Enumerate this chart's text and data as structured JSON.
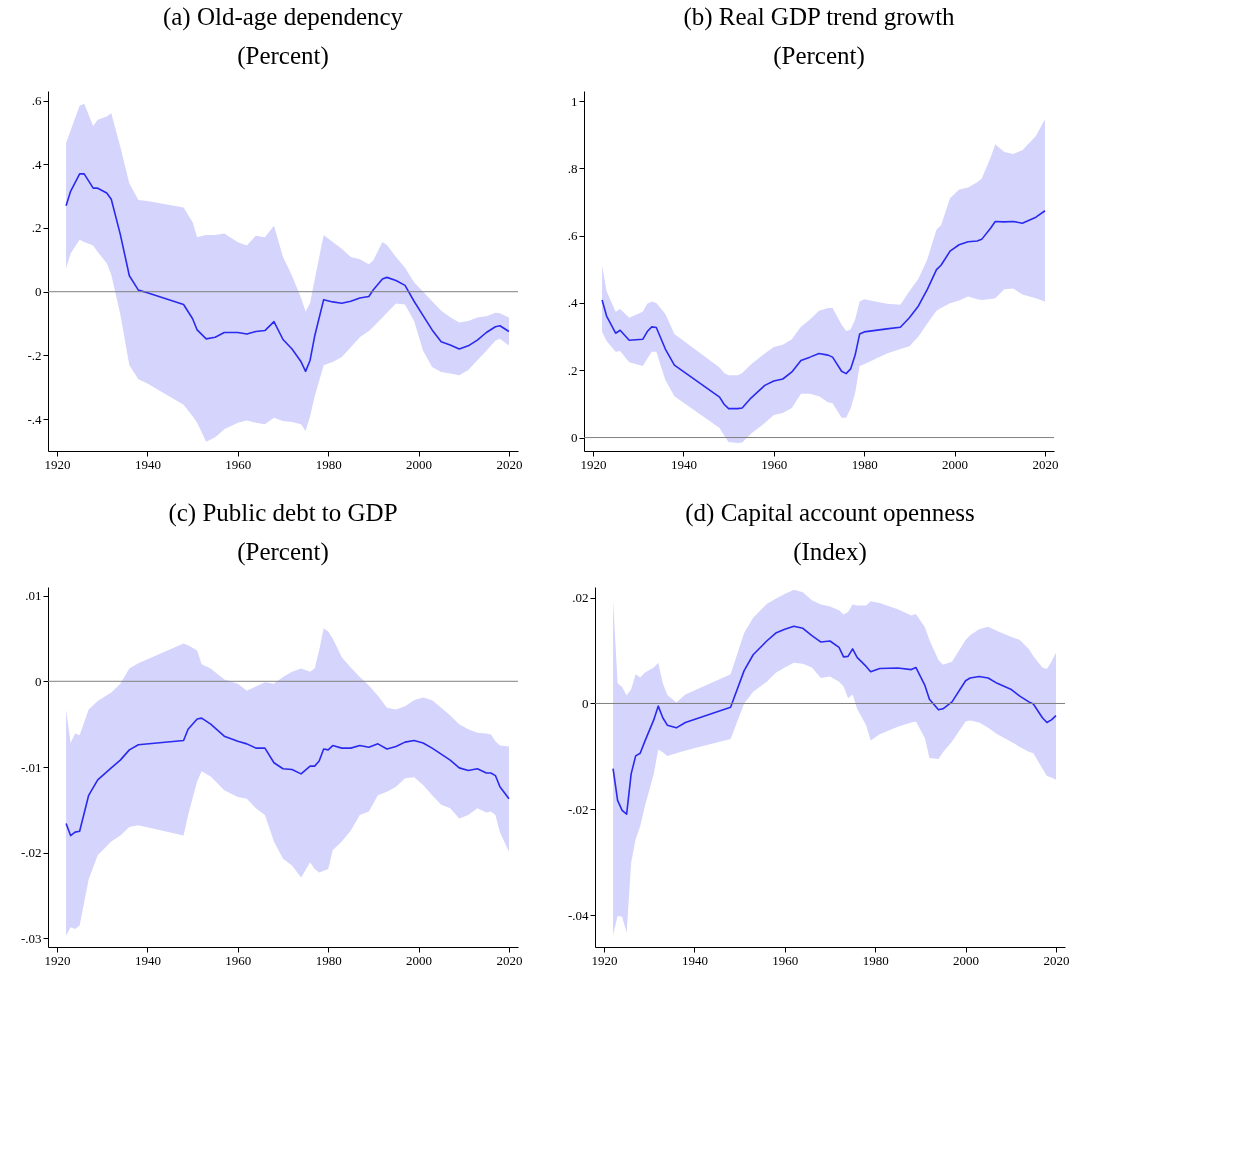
{
  "chart_data": [
    {
      "type": "line",
      "title": "(a) Old-age dependency",
      "subtitle": "(Percent)",
      "grid": false,
      "x": [
        1922,
        1923,
        1925,
        1926,
        1928,
        1929,
        1931,
        1932,
        1934,
        1936,
        1938,
        1940,
        1948,
        1950,
        1951,
        1953,
        1955,
        1957,
        1960,
        1962,
        1964,
        1966,
        1968,
        1970,
        1972,
        1974,
        1975,
        1976,
        1977,
        1979,
        1981,
        1983,
        1985,
        1987,
        1989,
        1990,
        1992,
        1993,
        1995,
        1997,
        1999,
        2001,
        2003,
        2005,
        2007,
        2009,
        2011,
        2013,
        2015,
        2017,
        2018,
        2020
      ],
      "series": [
        {
          "color": "#2a2aee",
          "values": [
            0.27,
            0.315,
            0.37,
            0.37,
            0.325,
            0.325,
            0.31,
            0.29,
            0.18,
            0.05,
            0.005,
            -0.003,
            -0.04,
            -0.085,
            -0.12,
            -0.148,
            -0.143,
            -0.128,
            -0.128,
            -0.133,
            -0.125,
            -0.122,
            -0.094,
            -0.15,
            -0.18,
            -0.22,
            -0.25,
            -0.215,
            -0.14,
            -0.025,
            -0.032,
            -0.036,
            -0.03,
            -0.02,
            -0.015,
            0.006,
            0.04,
            0.045,
            0.035,
            0.02,
            -0.03,
            -0.075,
            -0.12,
            -0.157,
            -0.167,
            -0.18,
            -0.17,
            -0.152,
            -0.128,
            -0.11,
            -0.107,
            -0.125
          ],
          "lower": [
            0.073,
            0.12,
            0.163,
            0.156,
            0.145,
            0.125,
            0.089,
            0.053,
            -0.071,
            -0.231,
            -0.275,
            -0.288,
            -0.355,
            -0.391,
            -0.411,
            -0.471,
            -0.457,
            -0.432,
            -0.411,
            -0.404,
            -0.411,
            -0.416,
            -0.396,
            -0.406,
            -0.409,
            -0.416,
            -0.437,
            -0.391,
            -0.329,
            -0.231,
            -0.221,
            -0.205,
            -0.174,
            -0.143,
            -0.123,
            -0.11,
            -0.081,
            -0.066,
            -0.037,
            -0.04,
            -0.092,
            -0.185,
            -0.236,
            -0.252,
            -0.257,
            -0.262,
            -0.246,
            -0.215,
            -0.185,
            -0.154,
            -0.148,
            -0.169
          ],
          "upper": [
            0.467,
            0.506,
            0.584,
            0.59,
            0.52,
            0.54,
            0.55,
            0.56,
            0.455,
            0.34,
            0.288,
            0.285,
            0.264,
            0.218,
            0.171,
            0.178,
            0.178,
            0.183,
            0.155,
            0.145,
            0.176,
            0.171,
            0.207,
            0.109,
            0.05,
            -0.02,
            -0.063,
            -0.035,
            0.037,
            0.178,
            0.156,
            0.135,
            0.109,
            0.102,
            0.086,
            0.099,
            0.156,
            0.147,
            0.109,
            0.075,
            0.03,
            0.0,
            -0.03,
            -0.06,
            -0.08,
            -0.097,
            -0.092,
            -0.081,
            -0.077,
            -0.066,
            -0.068,
            -0.081
          ]
        }
      ],
      "xlim": [
        1918,
        2022
      ],
      "xticks": [
        1920,
        1940,
        1960,
        1980,
        2000,
        2020
      ],
      "ylim": [
        -0.5,
        0.63
      ],
      "yticks": [
        {
          "value": -0.4,
          "label": "-.4"
        },
        {
          "value": -0.2,
          "label": "-.2"
        },
        {
          "value": 0,
          "label": "0"
        },
        {
          "value": 0.2,
          "label": ".2"
        },
        {
          "value": 0.4,
          "label": ".4"
        },
        {
          "value": 0.6,
          "label": ".6"
        }
      ],
      "ref_lines": [
        {
          "axis": "y",
          "value": 0,
          "color": "#808080"
        }
      ]
    },
    {
      "type": "line",
      "title": "(b) Real GDP trend growth",
      "subtitle": "(Percent)",
      "grid": false,
      "x": [
        1922,
        1923,
        1925,
        1926,
        1928,
        1931,
        1932,
        1933,
        1934,
        1936,
        1938,
        1948,
        1949,
        1950,
        1952,
        1953,
        1955,
        1958,
        1960,
        1962,
        1964,
        1966,
        1968,
        1970,
        1972,
        1973,
        1975,
        1976,
        1977,
        1978,
        1979,
        1980,
        1985,
        1988,
        1990,
        1992,
        1994,
        1996,
        1997,
        1999,
        2001,
        2003,
        2005,
        2006,
        2008,
        2009,
        2011,
        2013,
        2015,
        2018,
        2020
      ],
      "series": [
        {
          "color": "#2a2aee",
          "values": [
            0.409,
            0.361,
            0.31,
            0.319,
            0.289,
            0.292,
            0.315,
            0.329,
            0.327,
            0.263,
            0.215,
            0.12,
            0.099,
            0.086,
            0.086,
            0.088,
            0.118,
            0.155,
            0.168,
            0.174,
            0.195,
            0.229,
            0.239,
            0.25,
            0.245,
            0.239,
            0.197,
            0.19,
            0.204,
            0.245,
            0.308,
            0.314,
            0.323,
            0.328,
            0.356,
            0.391,
            0.441,
            0.499,
            0.512,
            0.554,
            0.573,
            0.582,
            0.584,
            0.589,
            0.623,
            0.642,
            0.641,
            0.642,
            0.637,
            0.655,
            0.674
          ],
          "lower": [
            0.314,
            0.287,
            0.255,
            0.257,
            0.224,
            0.213,
            0.234,
            0.255,
            0.255,
            0.171,
            0.123,
            0.028,
            0.006,
            -0.013,
            -0.016,
            -0.015,
            0.012,
            0.043,
            0.067,
            0.073,
            0.088,
            0.13,
            0.13,
            0.123,
            0.105,
            0.102,
            0.059,
            0.059,
            0.086,
            0.133,
            0.213,
            0.218,
            0.25,
            0.263,
            0.271,
            0.3,
            0.34,
            0.377,
            0.385,
            0.399,
            0.407,
            0.419,
            0.411,
            0.409,
            0.412,
            0.414,
            0.441,
            0.443,
            0.425,
            0.414,
            0.404
          ],
          "upper": [
            0.51,
            0.435,
            0.374,
            0.382,
            0.356,
            0.374,
            0.398,
            0.404,
            0.4,
            0.367,
            0.308,
            0.208,
            0.192,
            0.185,
            0.185,
            0.192,
            0.218,
            0.25,
            0.269,
            0.276,
            0.292,
            0.329,
            0.351,
            0.377,
            0.385,
            0.385,
            0.335,
            0.317,
            0.321,
            0.351,
            0.404,
            0.411,
            0.398,
            0.395,
            0.435,
            0.472,
            0.531,
            0.618,
            0.631,
            0.711,
            0.737,
            0.743,
            0.759,
            0.769,
            0.833,
            0.872,
            0.849,
            0.843,
            0.854,
            0.896,
            0.946
          ]
        }
      ],
      "xlim": [
        1918,
        2022
      ],
      "xticks": [
        1920,
        1940,
        1960,
        1980,
        2000,
        2020
      ],
      "ylim": [
        -0.04,
        1.03
      ],
      "yticks": [
        {
          "value": 0,
          "label": "0"
        },
        {
          "value": 0.2,
          "label": ".2"
        },
        {
          "value": 0.4,
          "label": ".4"
        },
        {
          "value": 0.6,
          "label": ".6"
        },
        {
          "value": 0.8,
          "label": ".8"
        },
        {
          "value": 1,
          "label": "1"
        }
      ],
      "ref_lines": [
        {
          "axis": "y",
          "value": 0,
          "color": "#808080"
        }
      ]
    },
    {
      "type": "line",
      "title": "(c) Public debt to GDP",
      "subtitle": "(Percent)",
      "grid": false,
      "x": [
        1922,
        1923,
        1924,
        1925,
        1927,
        1929,
        1932,
        1934,
        1936,
        1938,
        1948,
        1949,
        1951,
        1952,
        1954,
        1957,
        1960,
        1962,
        1964,
        1966,
        1968,
        1970,
        1972,
        1974,
        1976,
        1977,
        1978,
        1979,
        1980,
        1981,
        1983,
        1985,
        1987,
        1989,
        1991,
        1993,
        1995,
        1997,
        1999,
        2001,
        2003,
        2005,
        2007,
        2009,
        2011,
        2013,
        2015,
        2016,
        2017,
        2018,
        2020
      ],
      "series": [
        {
          "color": "#2a2aee",
          "values": [
            -0.0166,
            -0.018,
            -0.0176,
            -0.0175,
            -0.0133,
            -0.0115,
            -0.0101,
            -0.0092,
            -0.008,
            -0.0074,
            -0.0069,
            -0.0056,
            -0.0044,
            -0.0043,
            -0.005,
            -0.0064,
            -0.007,
            -0.0073,
            -0.0078,
            -0.0078,
            -0.0095,
            -0.0102,
            -0.0103,
            -0.0108,
            -0.0099,
            -0.0099,
            -0.0093,
            -0.0079,
            -0.008,
            -0.0075,
            -0.0078,
            -0.0078,
            -0.0075,
            -0.0077,
            -0.0073,
            -0.0079,
            -0.0076,
            -0.0071,
            -0.0069,
            -0.0072,
            -0.0078,
            -0.0085,
            -0.0092,
            -0.0101,
            -0.0104,
            -0.0102,
            -0.0107,
            -0.0107,
            -0.011,
            -0.0123,
            -0.0137
          ],
          "lower": [
            -0.0297,
            -0.0287,
            -0.0289,
            -0.0285,
            -0.0231,
            -0.0203,
            -0.0187,
            -0.018,
            -0.017,
            -0.0168,
            -0.018,
            -0.0156,
            -0.0117,
            -0.0105,
            -0.0111,
            -0.0127,
            -0.0135,
            -0.0137,
            -0.0148,
            -0.0156,
            -0.0187,
            -0.0207,
            -0.0215,
            -0.0229,
            -0.0211,
            -0.0219,
            -0.0223,
            -0.0221,
            -0.0219,
            -0.0197,
            -0.0187,
            -0.0174,
            -0.0156,
            -0.0152,
            -0.0133,
            -0.0129,
            -0.0123,
            -0.0113,
            -0.0112,
            -0.0121,
            -0.0133,
            -0.0144,
            -0.0148,
            -0.016,
            -0.0156,
            -0.0148,
            -0.0153,
            -0.0152,
            -0.0156,
            -0.0176,
            -0.0199
          ],
          "upper": [
            -0.0033,
            -0.0072,
            -0.0061,
            -0.0063,
            -0.0033,
            -0.0023,
            -0.0013,
            -0.0003,
            0.0015,
            0.0021,
            0.0044,
            0.0042,
            0.0036,
            0.002,
            0.0015,
            0.0002,
            -0.0003,
            -0.0011,
            -0.0006,
            -0.0001,
            -0.0003,
            0.0005,
            0.0011,
            0.0015,
            0.0011,
            0.0015,
            0.0036,
            0.0062,
            0.0058,
            0.005,
            0.0028,
            0.0016,
            0.0005,
            -0.0005,
            -0.0017,
            -0.0031,
            -0.0033,
            -0.0029,
            -0.0022,
            -0.0019,
            -0.0022,
            -0.0031,
            -0.004,
            -0.005,
            -0.0056,
            -0.006,
            -0.0061,
            -0.0062,
            -0.007,
            -0.0075,
            -0.0076
          ]
        }
      ],
      "xlim": [
        1918,
        2022
      ],
      "xticks": [
        1920,
        1940,
        1960,
        1980,
        2000,
        2020
      ],
      "ylim": [
        -0.031,
        0.011
      ],
      "yticks": [
        {
          "value": -0.03,
          "label": "-.03"
        },
        {
          "value": -0.02,
          "label": "-.02"
        },
        {
          "value": -0.01,
          "label": "-.01"
        },
        {
          "value": 0,
          "label": "0"
        },
        {
          "value": 0.01,
          "label": ".01"
        }
      ],
      "ref_lines": [
        {
          "axis": "y",
          "value": 0,
          "color": "#808080"
        }
      ]
    },
    {
      "type": "line",
      "title": "(d) Capital account openness",
      "subtitle": "(Index)",
      "grid": false,
      "x": [
        1922,
        1923,
        1924,
        1925,
        1926,
        1927,
        1928,
        1929,
        1931,
        1932,
        1933,
        1934,
        1936,
        1938,
        1948,
        1951,
        1953,
        1956,
        1958,
        1960,
        1962,
        1964,
        1966,
        1968,
        1970,
        1972,
        1973,
        1974,
        1975,
        1976,
        1978,
        1979,
        1981,
        1985,
        1988,
        1989,
        1991,
        1992,
        1994,
        1995,
        1997,
        2000,
        2001,
        2003,
        2005,
        2007,
        2010,
        2012,
        2014,
        2015,
        2017,
        2018,
        2019,
        2020
      ],
      "series": [
        {
          "color": "#2a2aee",
          "values": [
            -0.0123,
            -0.0183,
            -0.0202,
            -0.0209,
            -0.0133,
            -0.0099,
            -0.0094,
            -0.0072,
            -0.0031,
            -0.0005,
            -0.0027,
            -0.0041,
            -0.0046,
            -0.0036,
            -0.0007,
            0.0062,
            0.0092,
            0.0118,
            0.0133,
            0.014,
            0.0146,
            0.0142,
            0.0128,
            0.0116,
            0.0118,
            0.0106,
            0.0088,
            0.0089,
            0.0103,
            0.0087,
            0.007,
            0.006,
            0.0066,
            0.0067,
            0.0064,
            0.0068,
            0.0034,
            0.0008,
            -0.0012,
            -0.001,
            0.0003,
            0.0043,
            0.0048,
            0.0051,
            0.0048,
            0.0038,
            0.0027,
            0.0014,
            0.0003,
            -0.0001,
            -0.0027,
            -0.0036,
            -0.0031,
            -0.0023
          ],
          "lower": [
            -0.0438,
            -0.0401,
            -0.0403,
            -0.0433,
            -0.0301,
            -0.0256,
            -0.0232,
            -0.0195,
            -0.0133,
            -0.0087,
            -0.0092,
            -0.0099,
            -0.0094,
            -0.0089,
            -0.0067,
            0.0,
            0.0022,
            0.0041,
            0.0058,
            0.0068,
            0.0077,
            0.0075,
            0.0068,
            0.0048,
            0.0051,
            0.0041,
            0.0032,
            0.001,
            0.0017,
            -0.001,
            -0.0041,
            -0.007,
            -0.0058,
            -0.0044,
            -0.0036,
            -0.0034,
            -0.0065,
            -0.0103,
            -0.0105,
            -0.0092,
            -0.0072,
            -0.0034,
            -0.0032,
            -0.0036,
            -0.0046,
            -0.0058,
            -0.0072,
            -0.0082,
            -0.0091,
            -0.0094,
            -0.0123,
            -0.0137,
            -0.014,
            -0.0144
          ],
          "upper": [
            0.0195,
            0.0038,
            0.0031,
            0.0015,
            0.0027,
            0.0055,
            0.0049,
            0.0058,
            0.0068,
            0.0077,
            0.0038,
            0.0016,
            0.0002,
            0.0017,
            0.0055,
            0.0133,
            0.0162,
            0.0188,
            0.0198,
            0.0207,
            0.0215,
            0.021,
            0.0195,
            0.0187,
            0.0183,
            0.0176,
            0.0168,
            0.0173,
            0.0187,
            0.0185,
            0.0185,
            0.0193,
            0.019,
            0.0178,
            0.0166,
            0.0169,
            0.0144,
            0.012,
            0.0082,
            0.0073,
            0.0079,
            0.012,
            0.0129,
            0.014,
            0.0145,
            0.0137,
            0.0126,
            0.012,
            0.0103,
            0.0089,
            0.0068,
            0.0065,
            0.0079,
            0.0096
          ]
        }
      ],
      "xlim": [
        1918,
        2022
      ],
      "xticks": [
        1920,
        1940,
        1960,
        1980,
        2000,
        2020
      ],
      "ylim": [
        -0.046,
        0.022
      ],
      "yticks": [
        {
          "value": -0.04,
          "label": "-.04"
        },
        {
          "value": -0.02,
          "label": "-.02"
        },
        {
          "value": 0,
          "label": "0"
        },
        {
          "value": 0.02,
          "label": ".02"
        }
      ],
      "ref_lines": [
        {
          "axis": "y",
          "value": 0,
          "color": "#808080"
        }
      ]
    }
  ]
}
